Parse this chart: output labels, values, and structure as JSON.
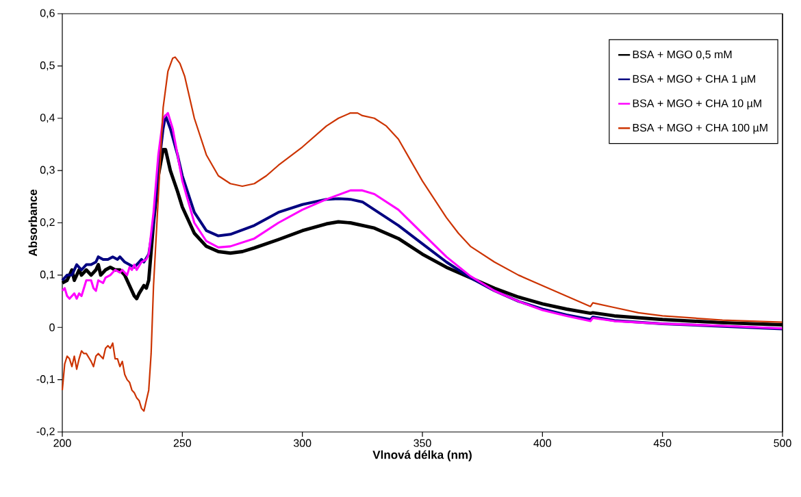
{
  "chart_data": {
    "type": "line",
    "xlabel": "Vlnová délka (nm)",
    "ylabel": "Absorbance",
    "xlim": [
      200,
      500
    ],
    "xticks": [
      200,
      250,
      300,
      350,
      400,
      450,
      500
    ],
    "ylim": [
      -0.2,
      0.6
    ],
    "yticks": [
      {
        "value": -0.2,
        "label": "-0,2"
      },
      {
        "value": -0.1,
        "label": "-0,1"
      },
      0,
      {
        "value": 0.1,
        "label": "0,1"
      },
      {
        "value": 0.2,
        "label": "0,2"
      },
      {
        "value": 0.3,
        "label": "0,3"
      },
      {
        "value": 0.4,
        "label": "0,4"
      },
      {
        "value": 0.5,
        "label": "0,5"
      },
      {
        "value": 0.6,
        "label": "0,6"
      }
    ],
    "legend": "top right",
    "grid": false,
    "marker": "none",
    "line_style": "solid",
    "series": [
      {
        "name": "BSA + MGO 0,5 mM",
        "color": "#000000",
        "x": [
          200,
          202,
          204,
          205,
          207,
          208,
          210,
          212,
          214,
          215,
          216,
          218,
          220,
          222,
          224,
          226,
          228,
          230,
          231,
          232,
          234,
          235,
          236,
          238,
          240,
          242,
          243,
          245,
          248,
          250,
          255,
          260,
          265,
          270,
          275,
          280,
          290,
          300,
          310,
          315,
          320,
          330,
          340,
          350,
          360,
          370,
          380,
          390,
          400,
          410,
          420,
          421,
          430,
          450,
          475,
          500
        ],
        "values": [
          0.085,
          0.09,
          0.11,
          0.09,
          0.11,
          0.1,
          0.11,
          0.1,
          0.11,
          0.12,
          0.1,
          0.11,
          0.115,
          0.11,
          0.11,
          0.1,
          0.08,
          0.06,
          0.055,
          0.065,
          0.08,
          0.075,
          0.09,
          0.2,
          0.29,
          0.34,
          0.34,
          0.3,
          0.26,
          0.23,
          0.18,
          0.155,
          0.145,
          0.142,
          0.145,
          0.152,
          0.168,
          0.185,
          0.198,
          0.202,
          0.2,
          0.19,
          0.17,
          0.14,
          0.115,
          0.095,
          0.075,
          0.058,
          0.045,
          0.035,
          0.027,
          0.028,
          0.022,
          0.015,
          0.009,
          0.005
        ]
      },
      {
        "name": "BSA + MGO + CHA 1 µM",
        "color": "#000080",
        "x": [
          200,
          202,
          204,
          206,
          208,
          210,
          212,
          214,
          215,
          217,
          219,
          221,
          223,
          224,
          226,
          228,
          230,
          232,
          233,
          234,
          236,
          238,
          240,
          242,
          243,
          245,
          248,
          250,
          255,
          260,
          265,
          270,
          280,
          290,
          300,
          310,
          315,
          320,
          325,
          330,
          340,
          350,
          360,
          370,
          380,
          390,
          400,
          410,
          420,
          421,
          430,
          450,
          475,
          500
        ],
        "values": [
          0.09,
          0.1,
          0.1,
          0.12,
          0.11,
          0.12,
          0.12,
          0.125,
          0.135,
          0.13,
          0.13,
          0.135,
          0.13,
          0.135,
          0.125,
          0.12,
          0.115,
          0.125,
          0.13,
          0.125,
          0.14,
          0.2,
          0.3,
          0.38,
          0.405,
          0.38,
          0.33,
          0.29,
          0.22,
          0.185,
          0.175,
          0.178,
          0.195,
          0.22,
          0.235,
          0.245,
          0.246,
          0.245,
          0.24,
          0.225,
          0.195,
          0.16,
          0.125,
          0.095,
          0.07,
          0.05,
          0.035,
          0.024,
          0.015,
          0.02,
          0.013,
          0.007,
          0.002,
          -0.003
        ]
      },
      {
        "name": "BSA + MGO + CHA 10 µM",
        "color": "#ff00ff",
        "x": [
          200,
          201,
          202,
          203,
          205,
          206,
          207,
          208,
          210,
          212,
          213,
          214,
          215,
          217,
          218,
          220,
          222,
          224,
          225,
          227,
          228,
          229,
          230,
          231,
          233,
          235,
          236,
          238,
          240,
          242,
          244,
          246,
          248,
          250,
          255,
          260,
          265,
          270,
          280,
          290,
          300,
          310,
          320,
          325,
          330,
          340,
          350,
          360,
          370,
          380,
          390,
          400,
          410,
          420,
          421,
          430,
          450,
          475,
          500
        ],
        "values": [
          0.07,
          0.075,
          0.06,
          0.055,
          0.065,
          0.055,
          0.065,
          0.06,
          0.09,
          0.09,
          0.075,
          0.07,
          0.09,
          0.085,
          0.095,
          0.1,
          0.11,
          0.105,
          0.11,
          0.1,
          0.115,
          0.11,
          0.12,
          0.11,
          0.125,
          0.13,
          0.14,
          0.22,
          0.33,
          0.4,
          0.41,
          0.38,
          0.33,
          0.28,
          0.2,
          0.165,
          0.153,
          0.155,
          0.17,
          0.2,
          0.225,
          0.245,
          0.262,
          0.262,
          0.255,
          0.225,
          0.18,
          0.135,
          0.098,
          0.07,
          0.05,
          0.033,
          0.022,
          0.012,
          0.018,
          0.012,
          0.007,
          0.003,
          -0.002
        ]
      },
      {
        "name": "BSA + MGO + CHA 100 µM",
        "color": "#cc3300",
        "x": [
          200,
          201,
          202,
          203,
          204,
          205,
          206,
          207,
          208,
          209,
          210,
          212,
          213,
          214,
          215,
          216,
          217,
          218,
          219,
          220,
          221,
          222,
          223,
          224,
          225,
          226,
          227,
          228,
          229,
          230,
          231,
          232,
          233,
          234,
          235,
          236,
          237,
          238,
          240,
          242,
          244,
          246,
          247,
          249,
          251,
          255,
          260,
          265,
          270,
          275,
          280,
          285,
          290,
          300,
          310,
          315,
          320,
          323,
          325,
          330,
          335,
          340,
          345,
          350,
          355,
          360,
          365,
          370,
          375,
          380,
          390,
          400,
          410,
          420,
          421,
          430,
          440,
          450,
          475,
          500
        ],
        "values": [
          -0.12,
          -0.07,
          -0.055,
          -0.06,
          -0.075,
          -0.055,
          -0.08,
          -0.06,
          -0.045,
          -0.05,
          -0.05,
          -0.065,
          -0.075,
          -0.055,
          -0.05,
          -0.055,
          -0.06,
          -0.04,
          -0.035,
          -0.04,
          -0.03,
          -0.06,
          -0.06,
          -0.075,
          -0.065,
          -0.09,
          -0.1,
          -0.105,
          -0.12,
          -0.125,
          -0.135,
          -0.14,
          -0.155,
          -0.16,
          -0.14,
          -0.12,
          -0.05,
          0.08,
          0.25,
          0.42,
          0.49,
          0.515,
          0.517,
          0.505,
          0.48,
          0.4,
          0.33,
          0.29,
          0.275,
          0.27,
          0.275,
          0.29,
          0.31,
          0.345,
          0.385,
          0.4,
          0.41,
          0.41,
          0.405,
          0.4,
          0.385,
          0.36,
          0.32,
          0.28,
          0.245,
          0.21,
          0.18,
          0.155,
          0.14,
          0.125,
          0.1,
          0.08,
          0.06,
          0.04,
          0.047,
          0.038,
          0.028,
          0.022,
          0.014,
          0.01
        ]
      }
    ]
  }
}
